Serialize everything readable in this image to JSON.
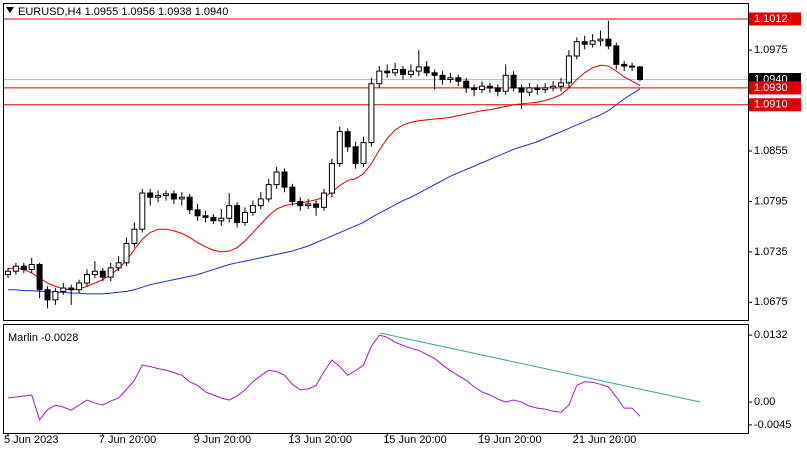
{
  "chart_data": {
    "type": "candlestick",
    "title": "EURUSD,H4  1.0955 1.0956 1.0938 1.0940",
    "categories": [
      "5 Jun 2023",
      null,
      null,
      null,
      null,
      null,
      null,
      null,
      null,
      null,
      null,
      null,
      "7 Jun 20:00",
      null,
      null,
      null,
      null,
      null,
      null,
      null,
      null,
      null,
      null,
      null,
      "9 Jun 20:00",
      null,
      null,
      null,
      null,
      null,
      null,
      null,
      null,
      null,
      null,
      null,
      "13 Jun 20:00",
      null,
      null,
      null,
      null,
      null,
      null,
      null,
      null,
      null,
      null,
      null,
      "15 Jun 20:00",
      null,
      null,
      null,
      null,
      null,
      null,
      null,
      null,
      null,
      null,
      null,
      "19 Jun 20:00",
      null,
      null,
      null,
      null,
      null,
      null,
      null,
      null,
      null,
      null,
      null,
      "21 Jun 20:00",
      null,
      null,
      null,
      null,
      null,
      null,
      null,
      null
    ],
    "open": [
      1.0708,
      1.0712,
      1.0718,
      1.0714,
      1.072,
      1.069,
      1.0678,
      1.0688,
      1.0692,
      1.069,
      1.0698,
      1.0708,
      1.0712,
      1.0705,
      1.0716,
      1.0722,
      1.0745,
      1.0762,
      1.0805,
      1.08,
      1.0802,
      1.0804,
      1.0798,
      1.08,
      1.0785,
      1.0778,
      1.0776,
      1.0772,
      1.0775,
      1.079,
      1.077,
      1.0782,
      1.079,
      1.0798,
      1.0815,
      1.083,
      1.0812,
      1.0795,
      1.079,
      1.0792,
      1.0788,
      1.0805,
      1.084,
      1.0878,
      1.086,
      1.084,
      1.0865,
      1.0935,
      1.095,
      1.0948,
      1.0952,
      1.0946,
      1.095,
      1.0955,
      1.0948,
      1.0945,
      1.094,
      1.0942,
      1.0938,
      1.093,
      1.0928,
      1.0932,
      1.093,
      1.0926,
      1.0945,
      1.093,
      1.0925,
      1.093,
      1.0928,
      1.093,
      1.0932,
      1.0936,
      1.0968,
      1.0985,
      1.0982,
      1.0986,
      1.0988,
      1.098,
      1.0958,
      1.0956,
      1.0955
    ],
    "high": [
      1.0716,
      1.0722,
      1.0722,
      1.0728,
      1.0722,
      1.0694,
      1.0692,
      1.0698,
      1.0696,
      1.0702,
      1.0714,
      1.0724,
      1.0716,
      1.0722,
      1.073,
      1.0752,
      1.077,
      1.081,
      1.081,
      1.0808,
      1.0808,
      1.0808,
      1.0806,
      1.0804,
      1.0792,
      1.0784,
      1.078,
      1.0786,
      1.0805,
      1.0794,
      1.0788,
      1.0796,
      1.0806,
      1.0822,
      1.0836,
      1.0834,
      1.0816,
      1.08,
      1.0798,
      1.0796,
      1.081,
      1.0846,
      1.0884,
      1.0882,
      1.0866,
      1.0872,
      1.0942,
      1.0956,
      1.0958,
      1.096,
      1.0956,
      1.0958,
      1.0975,
      1.0962,
      1.0952,
      1.095,
      1.0948,
      1.0946,
      1.0942,
      1.0934,
      1.0938,
      1.0936,
      1.0934,
      1.0958,
      1.095,
      1.0934,
      1.0936,
      1.0934,
      1.0936,
      1.0938,
      1.0942,
      1.0975,
      1.099,
      1.0992,
      1.0994,
      1.0998,
      1.101,
      1.0984,
      1.0962,
      1.096,
      1.0956
    ],
    "low": [
      1.0704,
      1.0708,
      1.071,
      1.071,
      1.068,
      1.0668,
      1.0672,
      1.0684,
      1.0672,
      1.0686,
      1.0694,
      1.0704,
      1.07,
      1.07,
      1.0712,
      1.0718,
      1.074,
      1.0758,
      1.079,
      1.0794,
      1.0796,
      1.0792,
      1.079,
      1.078,
      1.0772,
      1.077,
      1.0768,
      1.0766,
      1.077,
      1.0764,
      1.0766,
      1.0778,
      1.0786,
      1.0794,
      1.081,
      1.0806,
      1.079,
      1.0784,
      1.0786,
      1.0778,
      1.0784,
      1.08,
      1.0836,
      1.0854,
      1.0834,
      1.0836,
      1.086,
      1.093,
      1.0942,
      1.0944,
      1.094,
      1.0942,
      1.0944,
      1.0944,
      1.0928,
      1.0934,
      1.0936,
      1.0932,
      1.0924,
      1.092,
      1.0924,
      1.0924,
      1.092,
      1.0922,
      1.0926,
      1.0905,
      1.092,
      1.0922,
      1.0924,
      1.0926,
      1.0926,
      1.093,
      1.0964,
      1.0976,
      1.0978,
      1.098,
      1.0976,
      1.0952,
      1.095,
      1.095,
      1.0938
    ],
    "close": [
      1.0712,
      1.0718,
      1.0714,
      1.072,
      1.069,
      1.0678,
      1.0688,
      1.0692,
      1.069,
      1.0698,
      1.0708,
      1.0712,
      1.0705,
      1.0716,
      1.0722,
      1.0745,
      1.0762,
      1.0805,
      1.08,
      1.0802,
      1.0804,
      1.0798,
      1.08,
      1.0785,
      1.0778,
      1.0776,
      1.0772,
      1.0775,
      1.079,
      1.077,
      1.0782,
      1.079,
      1.0798,
      1.0815,
      1.083,
      1.0812,
      1.0795,
      1.079,
      1.0792,
      1.0788,
      1.0805,
      1.084,
      1.0878,
      1.086,
      1.084,
      1.0865,
      1.0935,
      1.095,
      1.0948,
      1.0952,
      1.0946,
      1.095,
      1.0955,
      1.0948,
      1.0945,
      1.094,
      1.0942,
      1.0938,
      1.093,
      1.0928,
      1.0932,
      1.093,
      1.0926,
      1.0945,
      1.093,
      1.0925,
      1.093,
      1.0928,
      1.093,
      1.0932,
      1.0936,
      1.0968,
      1.0985,
      1.0982,
      1.0986,
      1.0988,
      1.098,
      1.0958,
      1.0956,
      1.0955,
      1.094
    ],
    "series": [
      {
        "color": "#e00000",
        "values": [
          1.0715,
          1.0716,
          1.0714,
          1.071,
          1.0704,
          1.0698,
          1.0694,
          1.0691,
          1.069,
          1.0691,
          1.0694,
          1.0698,
          1.0702,
          1.0708,
          1.0715,
          1.0725,
          1.0738,
          1.075,
          1.0758,
          1.0762,
          1.0762,
          1.076,
          1.0757,
          1.0752,
          1.0746,
          1.0741,
          1.0737,
          1.0735,
          1.0736,
          1.074,
          1.0748,
          1.0758,
          1.0768,
          1.0778,
          1.0786,
          1.079,
          1.0792,
          1.0793,
          1.0795,
          1.0797,
          1.08,
          1.0806,
          1.0814,
          1.082,
          1.0822,
          1.0828,
          1.084,
          1.0856,
          1.087,
          1.088,
          1.0886,
          1.0889,
          1.0891,
          1.0892,
          1.0893,
          1.0894,
          1.0895,
          1.0897,
          1.0899,
          1.0901,
          1.0903,
          1.0904,
          1.0906,
          1.0908,
          1.091,
          1.0911,
          1.0912,
          1.0913,
          1.0915,
          1.0918,
          1.0922,
          1.093,
          1.094,
          1.0948,
          1.0954,
          1.0957,
          1.0956,
          1.095,
          1.0943,
          1.0938,
          1.0933
        ]
      },
      {
        "color": "#1a2fd0",
        "values": [
          1.069,
          1.069,
          1.0689,
          1.0689,
          1.0688,
          1.0688,
          1.0687,
          1.0687,
          1.0686,
          1.0686,
          1.0685,
          1.0685,
          1.0685,
          1.0686,
          1.0687,
          1.0688,
          1.069,
          1.0693,
          1.0696,
          1.0698,
          1.07,
          1.0702,
          1.0704,
          1.0706,
          1.0708,
          1.0711,
          1.0714,
          1.0717,
          1.072,
          1.0722,
          1.0724,
          1.0726,
          1.0728,
          1.073,
          1.0732,
          1.0734,
          1.0736,
          1.0739,
          1.0742,
          1.0746,
          1.075,
          1.0754,
          1.0758,
          1.0762,
          1.0766,
          1.077,
          1.0776,
          1.0781,
          1.0786,
          1.0791,
          1.0796,
          1.08,
          1.0805,
          1.081,
          1.0815,
          1.082,
          1.0825,
          1.0829,
          1.0833,
          1.0837,
          1.0841,
          1.0845,
          1.0849,
          1.0853,
          1.0857,
          1.086,
          1.0863,
          1.0866,
          1.087,
          1.0874,
          1.0878,
          1.0882,
          1.0886,
          1.089,
          1.0894,
          1.0898,
          1.0903,
          1.091,
          1.0917,
          1.0923,
          1.0929
        ]
      }
    ],
    "bull_color": "#ffffff",
    "bear_color": "#000000",
    "ylim": [
      1.0654,
      1.1031
    ],
    "yticks": [
      1.0975,
      1.0855,
      1.0795,
      1.0735,
      1.0675
    ],
    "levels": [
      {
        "value": 1.1012,
        "label": "1.1012"
      },
      {
        "value": 1.093,
        "label": "1.0930"
      },
      {
        "value": 1.091,
        "label": "1.0910"
      }
    ],
    "level_color": "#e00000",
    "last_price": {
      "value": 1.094,
      "label": "1.0940"
    },
    "indicator": {
      "label": "Marlin -0.0028",
      "color": "#a020c0",
      "values": [
        0.0008,
        0.001,
        0.0012,
        0.0014,
        -0.0035,
        -0.0015,
        -0.0006,
        -0.001,
        -0.0016,
        -0.0006,
        0.0004,
        -0.0002,
        -0.0006,
        0.0002,
        0.0008,
        0.0025,
        0.0043,
        0.0073,
        0.007,
        0.0066,
        0.0063,
        0.0058,
        0.0053,
        0.004,
        0.0033,
        0.002,
        0.0014,
        0.0008,
        0.0004,
        0.0012,
        0.0024,
        0.004,
        0.0052,
        0.0063,
        0.006,
        0.0053,
        0.0035,
        0.0024,
        0.0026,
        0.0033,
        0.006,
        0.0083,
        0.007,
        0.0053,
        0.0062,
        0.0073,
        0.011,
        0.0132,
        0.0128,
        0.0118,
        0.0112,
        0.0106,
        0.0102,
        0.0094,
        0.0086,
        0.0073,
        0.0062,
        0.0052,
        0.0043,
        0.003,
        0.002,
        0.0014,
        0.0006,
        0.0,
        0.0004,
        0.0,
        -0.0008,
        -0.0012,
        -0.0014,
        -0.0018,
        -0.002,
        -0.0006,
        0.0033,
        0.004,
        0.0039,
        0.0035,
        0.003,
        0.001,
        -0.0012,
        -0.0012,
        -0.0028
      ],
      "ylim": [
        -0.0061,
        0.0152
      ],
      "yticks": [
        0.0132,
        {
          "value": 0,
          "label": "0.00"
        },
        -0.0045
      ]
    }
  }
}
